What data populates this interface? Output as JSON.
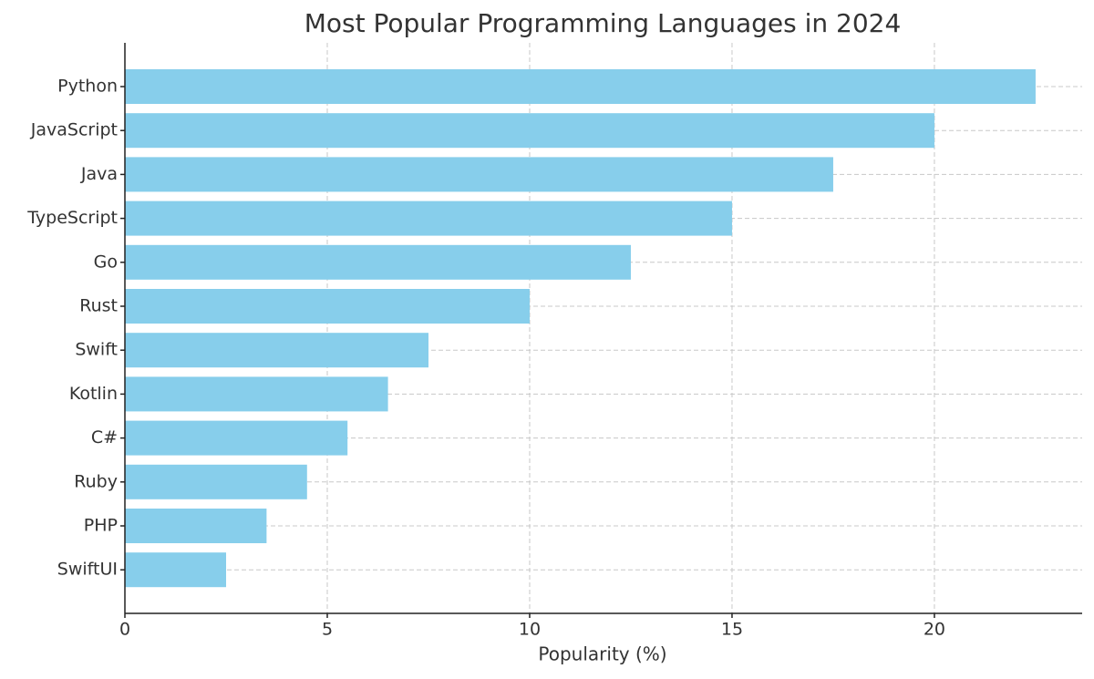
{
  "chart_data": {
    "type": "bar",
    "orientation": "horizontal",
    "title": "Most Popular Programming Languages in 2024",
    "x_label": "Popularity (%)",
    "categories": [
      "Python",
      "JavaScript",
      "Java",
      "TypeScript",
      "Go",
      "Rust",
      "Swift",
      "Kotlin",
      "C#",
      "Ruby",
      "PHP",
      "SwiftUI"
    ],
    "values": [
      22.5,
      20,
      17.5,
      15,
      12.5,
      10,
      7.5,
      6.5,
      5.5,
      4.5,
      3.5,
      2.5
    ],
    "color": "#87ceeb",
    "xlim": [
      0,
      23.65
    ],
    "xticks": [
      0,
      5,
      10,
      15,
      20
    ],
    "grid": true
  }
}
